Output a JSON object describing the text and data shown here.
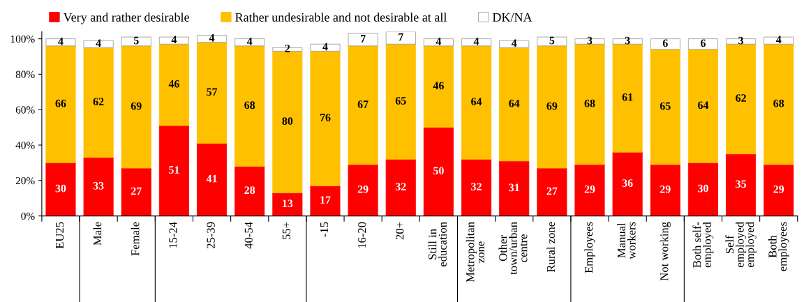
{
  "chart_data": {
    "type": "bar",
    "stacked": true,
    "data_labels": true,
    "legend": "top",
    "grid": false,
    "categories": [
      "EU25",
      "Male",
      "Female",
      "15-24",
      "25-39",
      "40-54",
      "55+",
      "-15",
      "16-20",
      "20+",
      "Still in\neducation",
      "Metropolitan\nzone",
      "Other\ntown/urban\ncentre",
      "Rural zone",
      "Employees",
      "Manual\nworkers",
      "Not working",
      "Both self-\nemployed",
      "Self\nemployed\nemployed",
      "Both\nemployees"
    ],
    "series": [
      {
        "name": "Very and rather desirable",
        "color": "#ff0000",
        "values": [
          30,
          33,
          27,
          51,
          41,
          28,
          13,
          17,
          29,
          32,
          50,
          32,
          31,
          27,
          29,
          36,
          29,
          30,
          35,
          29
        ]
      },
      {
        "name": "Rather undesirable and not desirable at all",
        "color": "#ffc000",
        "values": [
          66,
          62,
          69,
          46,
          57,
          68,
          80,
          76,
          67,
          65,
          46,
          64,
          64,
          69,
          68,
          61,
          65,
          64,
          62,
          68
        ]
      },
      {
        "name": "DK/NA",
        "color": "#ffffff",
        "values": [
          4,
          4,
          5,
          4,
          4,
          4,
          2,
          4,
          7,
          7,
          4,
          4,
          4,
          5,
          3,
          3,
          6,
          6,
          3,
          4
        ]
      }
    ],
    "ylim": [
      0,
      104
    ],
    "yticks": [
      {
        "value": 0,
        "label": "0%"
      },
      {
        "value": 20,
        "label": "20%"
      },
      {
        "value": 40,
        "label": "40%"
      },
      {
        "value": 60,
        "label": "60%"
      },
      {
        "value": 80,
        "label": "80%"
      },
      {
        "value": 100,
        "label": "100%"
      }
    ]
  }
}
